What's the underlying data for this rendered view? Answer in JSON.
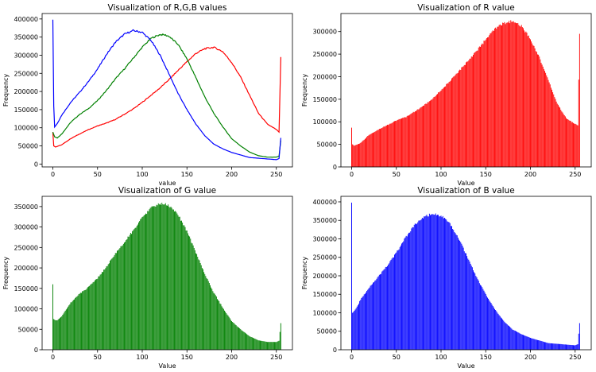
{
  "chart_data": [
    {
      "type": "line",
      "title": "Visualization of R,G,B values",
      "xlabel": "value",
      "ylabel": "Frequency",
      "xlim": [
        -12,
        268
      ],
      "ylim": [
        -8000,
        415000
      ],
      "xticks": [
        0,
        50,
        100,
        150,
        200,
        250
      ],
      "yticks": [
        0,
        50000,
        100000,
        150000,
        200000,
        250000,
        300000,
        350000,
        400000
      ],
      "series": [
        {
          "name": "R",
          "color": "#ff0000",
          "knots": [
            [
              0,
              88000
            ],
            [
              1,
              50000
            ],
            [
              3,
              47000
            ],
            [
              10,
              53000
            ],
            [
              20,
              70000
            ],
            [
              30,
              83000
            ],
            [
              40,
              95000
            ],
            [
              50,
              105000
            ],
            [
              60,
              113000
            ],
            [
              70,
              123000
            ],
            [
              80,
              137000
            ],
            [
              90,
              152000
            ],
            [
              100,
              170000
            ],
            [
              110,
              190000
            ],
            [
              120,
              210000
            ],
            [
              130,
              233000
            ],
            [
              140,
              258000
            ],
            [
              150,
              282000
            ],
            [
              160,
              305000
            ],
            [
              170,
              318000
            ],
            [
              180,
              322000
            ],
            [
              190,
              310000
            ],
            [
              200,
              280000
            ],
            [
              210,
              240000
            ],
            [
              220,
              190000
            ],
            [
              230,
              140000
            ],
            [
              240,
              110000
            ],
            [
              250,
              95000
            ],
            [
              253,
              88000
            ],
            [
              255,
              295000
            ]
          ]
        },
        {
          "name": "G",
          "color": "#008000",
          "knots": [
            [
              0,
              88000
            ],
            [
              2,
              75000
            ],
            [
              5,
              72000
            ],
            [
              10,
              83000
            ],
            [
              20,
              115000
            ],
            [
              30,
              137000
            ],
            [
              40,
              153000
            ],
            [
              50,
              175000
            ],
            [
              60,
              203000
            ],
            [
              70,
              235000
            ],
            [
              80,
              262000
            ],
            [
              90,
              292000
            ],
            [
              100,
              322000
            ],
            [
              110,
              347000
            ],
            [
              120,
              357000
            ],
            [
              125,
              356000
            ],
            [
              130,
              352000
            ],
            [
              140,
              330000
            ],
            [
              150,
              290000
            ],
            [
              160,
              238000
            ],
            [
              170,
              185000
            ],
            [
              180,
              140000
            ],
            [
              190,
              103000
            ],
            [
              200,
              70000
            ],
            [
              210,
              50000
            ],
            [
              220,
              33000
            ],
            [
              230,
              23000
            ],
            [
              240,
              19000
            ],
            [
              250,
              19000
            ],
            [
              253,
              22000
            ],
            [
              255,
              65000
            ]
          ]
        },
        {
          "name": "B",
          "color": "#0000ff",
          "knots": [
            [
              0,
              398000
            ],
            [
              1,
              160000
            ],
            [
              2,
              102000
            ],
            [
              5,
              112000
            ],
            [
              10,
              135000
            ],
            [
              20,
              170000
            ],
            [
              30,
              198000
            ],
            [
              40,
              228000
            ],
            [
              50,
              262000
            ],
            [
              60,
              302000
            ],
            [
              70,
              336000
            ],
            [
              80,
              358000
            ],
            [
              90,
              368000
            ],
            [
              100,
              363000
            ],
            [
              110,
              340000
            ],
            [
              120,
              300000
            ],
            [
              130,
              248000
            ],
            [
              140,
              195000
            ],
            [
              150,
              150000
            ],
            [
              160,
              110000
            ],
            [
              170,
              78000
            ],
            [
              180,
              55000
            ],
            [
              190,
              42000
            ],
            [
              200,
              32000
            ],
            [
              210,
              25000
            ],
            [
              220,
              18000
            ],
            [
              230,
              16000
            ],
            [
              240,
              14000
            ],
            [
              250,
              12000
            ],
            [
              253,
              15000
            ],
            [
              255,
              72000
            ]
          ]
        }
      ]
    },
    {
      "type": "bar",
      "title": "Visualization of R value",
      "xlabel": "Value",
      "ylabel": "Frequency",
      "color": "#ff0000",
      "xlim": [
        -12,
        268
      ],
      "ylim": [
        0,
        340000
      ],
      "xticks": [
        0,
        50,
        100,
        150,
        200,
        250
      ],
      "yticks": [
        0,
        50000,
        100000,
        150000,
        200000,
        250000,
        300000
      ],
      "knots": [
        [
          0,
          87000
        ],
        [
          1,
          50000
        ],
        [
          3,
          47000
        ],
        [
          10,
          53000
        ],
        [
          20,
          72000
        ],
        [
          30,
          83000
        ],
        [
          40,
          93000
        ],
        [
          50,
          103000
        ],
        [
          60,
          110000
        ],
        [
          70,
          122000
        ],
        [
          80,
          135000
        ],
        [
          90,
          150000
        ],
        [
          100,
          170000
        ],
        [
          110,
          190000
        ],
        [
          120,
          212000
        ],
        [
          130,
          235000
        ],
        [
          140,
          258000
        ],
        [
          150,
          282000
        ],
        [
          160,
          305000
        ],
        [
          170,
          318000
        ],
        [
          180,
          323000
        ],
        [
          190,
          312000
        ],
        [
          200,
          283000
        ],
        [
          210,
          243000
        ],
        [
          220,
          192000
        ],
        [
          230,
          140000
        ],
        [
          240,
          108000
        ],
        [
          250,
          95000
        ],
        [
          253,
          92000
        ],
        [
          255,
          295000
        ]
      ]
    },
    {
      "type": "bar",
      "title": "Visualization of G value",
      "xlabel": "Value",
      "ylabel": "Frequency",
      "color": "#008000",
      "xlim": [
        -12,
        268
      ],
      "ylim": [
        0,
        375000
      ],
      "xticks": [
        0,
        50,
        100,
        150,
        200,
        250
      ],
      "yticks": [
        0,
        50000,
        100000,
        150000,
        200000,
        250000,
        300000,
        350000
      ],
      "knots": [
        [
          0,
          160000
        ],
        [
          1,
          75000
        ],
        [
          3,
          72000
        ],
        [
          5,
          72000
        ],
        [
          10,
          82000
        ],
        [
          20,
          115000
        ],
        [
          30,
          137000
        ],
        [
          40,
          153000
        ],
        [
          50,
          175000
        ],
        [
          60,
          203000
        ],
        [
          70,
          235000
        ],
        [
          80,
          262000
        ],
        [
          90,
          292000
        ],
        [
          100,
          322000
        ],
        [
          110,
          347000
        ],
        [
          120,
          357000
        ],
        [
          125,
          356000
        ],
        [
          130,
          352000
        ],
        [
          140,
          330000
        ],
        [
          150,
          290000
        ],
        [
          160,
          238000
        ],
        [
          170,
          185000
        ],
        [
          180,
          140000
        ],
        [
          190,
          103000
        ],
        [
          200,
          70000
        ],
        [
          210,
          50000
        ],
        [
          220,
          33000
        ],
        [
          230,
          23000
        ],
        [
          240,
          19000
        ],
        [
          250,
          19000
        ],
        [
          253,
          22000
        ],
        [
          255,
          65000
        ]
      ]
    },
    {
      "type": "bar",
      "title": "Visualization of B value",
      "xlabel": "Value",
      "ylabel": "Frequency",
      "color": "#0000ff",
      "xlim": [
        -12,
        268
      ],
      "ylim": [
        0,
        415000
      ],
      "xticks": [
        0,
        50,
        100,
        150,
        200,
        250
      ],
      "yticks": [
        0,
        50000,
        100000,
        150000,
        200000,
        250000,
        300000,
        350000,
        400000
      ],
      "knots": [
        [
          0,
          398000
        ],
        [
          1,
          100000
        ],
        [
          2,
          102000
        ],
        [
          5,
          112000
        ],
        [
          10,
          135000
        ],
        [
          20,
          170000
        ],
        [
          30,
          198000
        ],
        [
          40,
          228000
        ],
        [
          50,
          262000
        ],
        [
          60,
          302000
        ],
        [
          70,
          336000
        ],
        [
          80,
          358000
        ],
        [
          90,
          368000
        ],
        [
          100,
          363000
        ],
        [
          110,
          340000
        ],
        [
          120,
          300000
        ],
        [
          130,
          248000
        ],
        [
          140,
          195000
        ],
        [
          150,
          150000
        ],
        [
          160,
          110000
        ],
        [
          170,
          78000
        ],
        [
          180,
          55000
        ],
        [
          190,
          42000
        ],
        [
          200,
          32000
        ],
        [
          210,
          25000
        ],
        [
          220,
          18000
        ],
        [
          230,
          16000
        ],
        [
          240,
          14000
        ],
        [
          250,
          12000
        ],
        [
          253,
          15000
        ],
        [
          255,
          72000
        ]
      ]
    }
  ]
}
